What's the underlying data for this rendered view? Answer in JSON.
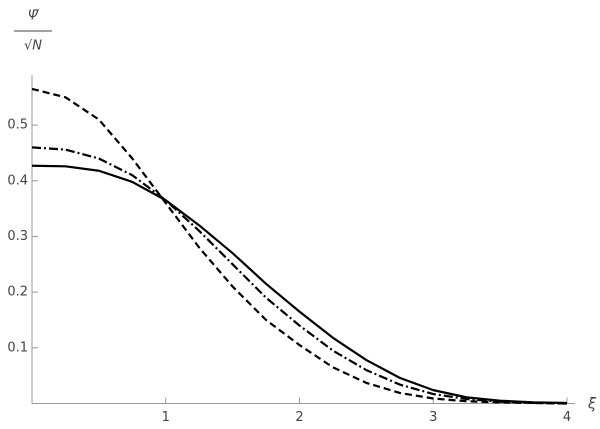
{
  "chart_data": {
    "type": "line",
    "x_label": "ξ",
    "y_label_numerator": "Ψ̃",
    "y_label_denominator": "√N",
    "x": [
      0,
      0.25,
      0.5,
      0.75,
      1,
      1.25,
      1.5,
      1.75,
      2,
      2.25,
      2.5,
      2.75,
      3,
      3.25,
      3.5,
      3.75,
      4
    ],
    "series": [
      {
        "color": "#000000",
        "style": "solid",
        "values": [
          0.427,
          0.426,
          0.418,
          0.398,
          0.365,
          0.32,
          0.27,
          0.215,
          0.165,
          0.118,
          0.078,
          0.046,
          0.024,
          0.011,
          0.005,
          0.002,
          0.001
        ]
      },
      {
        "color": "#000000",
        "style": "dashdot",
        "values": [
          0.46,
          0.456,
          0.44,
          0.41,
          0.365,
          0.31,
          0.25,
          0.19,
          0.14,
          0.095,
          0.06,
          0.034,
          0.017,
          0.008,
          0.003,
          0.001,
          0
        ]
      },
      {
        "color": "#000000",
        "style": "dashed",
        "values": [
          0.565,
          0.55,
          0.51,
          0.44,
          0.36,
          0.28,
          0.21,
          0.15,
          0.105,
          0.065,
          0.037,
          0.019,
          0.009,
          0.004,
          0.002,
          0.001,
          0
        ]
      }
    ],
    "xlim": [
      0,
      4.06
    ],
    "ylim": [
      0,
      0.59
    ],
    "xticks": [
      1,
      2,
      3,
      4
    ],
    "yticks": [
      0.1,
      0.2,
      0.3,
      0.4,
      0.5
    ],
    "grid": false
  }
}
